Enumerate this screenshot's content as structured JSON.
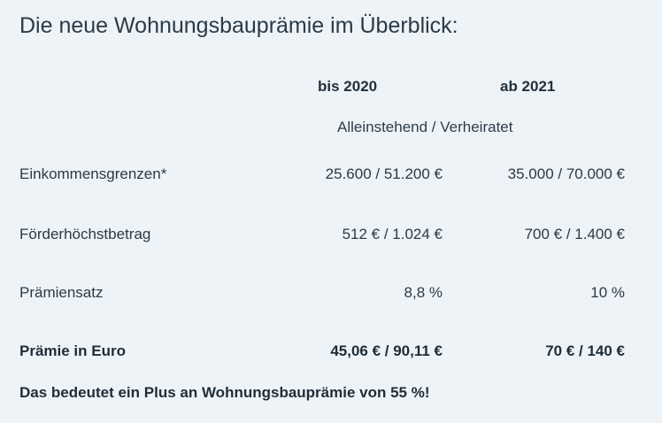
{
  "title": "Die neue Wohnungsbauprämie im Überblick:",
  "table": {
    "headers": [
      "bis 2020",
      "ab 2021"
    ],
    "subheader": "Alleinstehend / Verheiratet",
    "rows": [
      {
        "label": "Einkommensgrenzen*",
        "bis_2020": "25.600 / 51.200 €",
        "ab_2021": "35.000 / 70.000 €"
      },
      {
        "label": "Förderhöchstbetrag",
        "bis_2020": "512 € / 1.024 €",
        "ab_2021": "700 € / 1.400 €"
      },
      {
        "label": "Prämiensatz",
        "bis_2020": "8,8 %",
        "ab_2021": "10 %"
      },
      {
        "label": "Prämie in Euro",
        "bis_2020": "45,06 € / 90,11 €",
        "ab_2021": "70 € / 140 €"
      }
    ]
  },
  "summary": "Das bedeutet ein Plus an Wohnungsbauprämie von 55 %!"
}
